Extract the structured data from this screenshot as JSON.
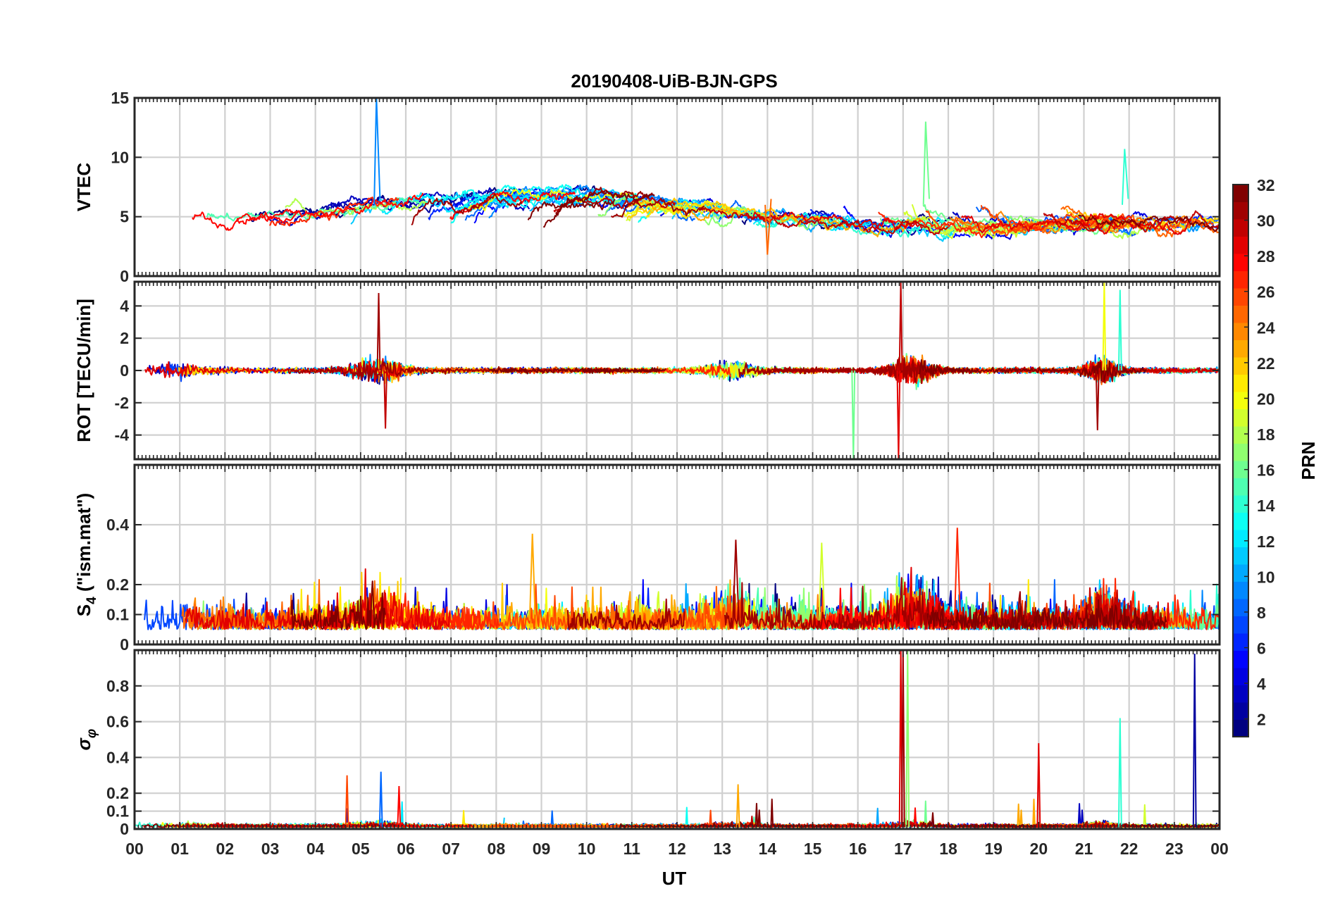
{
  "chart_data": {
    "type": "line",
    "title": "20190408-UiB-BJN-GPS",
    "xlabel": "UT",
    "x_tick_labels": [
      "00",
      "01",
      "02",
      "03",
      "04",
      "05",
      "06",
      "07",
      "08",
      "09",
      "10",
      "11",
      "12",
      "13",
      "14",
      "15",
      "16",
      "17",
      "18",
      "19",
      "20",
      "21",
      "22",
      "23",
      "00"
    ],
    "xlim": [
      0,
      24
    ],
    "grid": true,
    "colorbar": {
      "label": "PRN",
      "range": [
        1,
        32
      ],
      "tick_labels": [
        "2",
        "4",
        "6",
        "8",
        "10",
        "12",
        "14",
        "16",
        "18",
        "20",
        "22",
        "24",
        "26",
        "28",
        "30",
        "32"
      ],
      "colormap": "jet"
    },
    "panels": [
      {
        "id": "vtec",
        "ylabel": "VTEC",
        "ylim": [
          0,
          15
        ],
        "y_ticks": [
          0,
          5,
          10,
          15
        ],
        "y_tick_labels": [
          "0",
          "5",
          "10",
          "15"
        ],
        "series_count": 32,
        "typical_range": [
          2,
          10
        ],
        "events": [
          {
            "x": 5.35,
            "y": 15,
            "prn": 9
          },
          {
            "x": 17.5,
            "y": 13,
            "prn": 16
          },
          {
            "x": 21.9,
            "y": 10.7,
            "prn": 14
          },
          {
            "x": 14.0,
            "y": 1.8,
            "prn": 25
          }
        ]
      },
      {
        "id": "rot",
        "ylabel": "ROT [TECU/min]",
        "ylim": [
          -5.5,
          5.5
        ],
        "y_ticks": [
          -4,
          -2,
          0,
          2,
          4
        ],
        "y_tick_labels": [
          "-4",
          "-2",
          "0",
          "2",
          "4"
        ],
        "series_count": 32,
        "events": [
          {
            "x": 5.4,
            "y": 4.8,
            "prn": 31
          },
          {
            "x": 5.55,
            "y": -3.6,
            "prn": 30
          },
          {
            "x": 16.9,
            "y": -5.5,
            "prn": 29
          },
          {
            "x": 16.95,
            "y": 5.5,
            "prn": 30
          },
          {
            "x": 15.9,
            "y": -5.5,
            "prn": 16
          },
          {
            "x": 21.45,
            "y": 5.5,
            "prn": 20
          },
          {
            "x": 21.3,
            "y": -3.7,
            "prn": 31
          },
          {
            "x": 21.8,
            "y": 5.0,
            "prn": 14
          }
        ]
      },
      {
        "id": "s4",
        "ylabel": "S4 (\"ism.mat\")",
        "ylabel_main": "S",
        "ylabel_sub": "4",
        "ylabel_rest": " (\"ism.mat\")",
        "ylim": [
          0,
          0.6
        ],
        "y_ticks": [
          0,
          0.1,
          0.2,
          0.4
        ],
        "y_tick_labels": [
          "0",
          "0.1",
          "0.2",
          "0.4"
        ],
        "series_count": 32,
        "typical_range": [
          0.03,
          0.2
        ],
        "events": [
          {
            "x": 18.2,
            "y": 0.39,
            "prn": 27
          },
          {
            "x": 8.8,
            "y": 0.37,
            "prn": 23
          },
          {
            "x": 13.3,
            "y": 0.35,
            "prn": 31
          },
          {
            "x": 15.2,
            "y": 0.34,
            "prn": 19
          }
        ]
      },
      {
        "id": "sigma_phi",
        "ylabel": "σφ",
        "ylabel_main": "σ",
        "ylabel_sub": "φ",
        "ylim": [
          0,
          1
        ],
        "y_ticks": [
          0,
          0.1,
          0.2,
          0.4,
          0.6,
          0.8
        ],
        "y_tick_labels": [
          "0",
          "0.1",
          "0.2",
          "0.4",
          "0.6",
          "0.8"
        ],
        "series_count": 32,
        "events": [
          {
            "x": 16.95,
            "y": 1.0,
            "prn": 29
          },
          {
            "x": 17.0,
            "y": 1.0,
            "prn": 31
          },
          {
            "x": 17.1,
            "y": 1.0,
            "prn": 17
          },
          {
            "x": 20.0,
            "y": 0.48,
            "prn": 29
          },
          {
            "x": 21.8,
            "y": 0.62,
            "prn": 14
          },
          {
            "x": 23.45,
            "y": 0.98,
            "prn": 2
          },
          {
            "x": 5.45,
            "y": 0.32,
            "prn": 8
          },
          {
            "x": 4.7,
            "y": 0.3,
            "prn": 26
          },
          {
            "x": 5.85,
            "y": 0.24,
            "prn": 28
          },
          {
            "x": 13.35,
            "y": 0.25,
            "prn": 23
          }
        ]
      }
    ]
  }
}
